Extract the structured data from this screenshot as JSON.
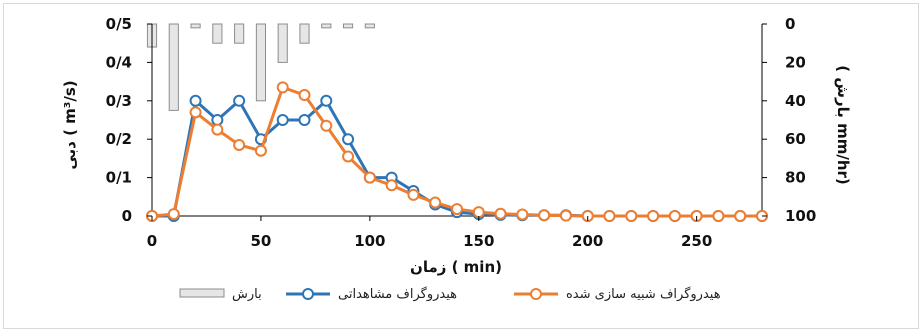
{
  "chart_data": {
    "type": "line",
    "x": [
      0,
      10,
      20,
      30,
      40,
      50,
      60,
      70,
      80,
      90,
      100,
      110,
      120,
      130,
      140,
      150,
      160,
      170,
      180,
      190,
      200,
      210,
      220,
      230,
      240,
      250,
      260,
      270,
      280
    ],
    "series": [
      {
        "name": "هیدروگراف مشاهداتی",
        "color": "#2e75b6",
        "values": [
          0,
          0,
          0.3,
          0.25,
          0.3,
          0.2,
          0.25,
          0.25,
          0.3,
          0.2,
          0.1,
          0.1,
          0.065,
          0.03,
          0.01,
          0.005,
          0.003,
          0.002,
          0.002,
          0.002,
          0,
          0,
          0,
          0,
          0,
          0,
          0,
          0,
          0
        ]
      },
      {
        "name": "هیدروگراف شبیه سازی شده",
        "color": "#ed7d31",
        "values": [
          0,
          0.005,
          0.27,
          0.225,
          0.185,
          0.17,
          0.335,
          0.315,
          0.235,
          0.155,
          0.1,
          0.08,
          0.055,
          0.035,
          0.018,
          0.01,
          0.006,
          0.004,
          0.002,
          0.001,
          0,
          0,
          0,
          0,
          0,
          0,
          0,
          0,
          0
        ]
      },
      {
        "name": "بارش",
        "type": "bar",
        "axis": "right",
        "x": [
          0,
          10,
          20,
          30,
          40,
          50,
          60,
          70,
          80,
          90,
          100
        ],
        "values": [
          12,
          45,
          2,
          10,
          10,
          40,
          20,
          10,
          2,
          2,
          2
        ]
      }
    ],
    "xlim": [
      0,
      280
    ],
    "xticks": [
      "0",
      "50",
      "100",
      "150",
      "200",
      "250"
    ],
    "xlabel": "زمان ( min)",
    "ylabel": "دبی ( m³/s)",
    "ylim": [
      0,
      0.5
    ],
    "yticks": [
      "0",
      "0/1",
      "0/2",
      "0/3",
      "0/4",
      "0/5"
    ],
    "y2label": "( بارش mm/hr)",
    "y2lim": [
      100,
      0
    ],
    "y2ticks": [
      "100",
      "80",
      "60",
      "40",
      "20",
      "0"
    ],
    "grid": false,
    "legend_position": "bottom"
  },
  "legend": {
    "rain": "بارش",
    "observed": "هیدروگراف مشاهداتی",
    "simulated": "هیدروگراف شبیه سازی شده"
  }
}
